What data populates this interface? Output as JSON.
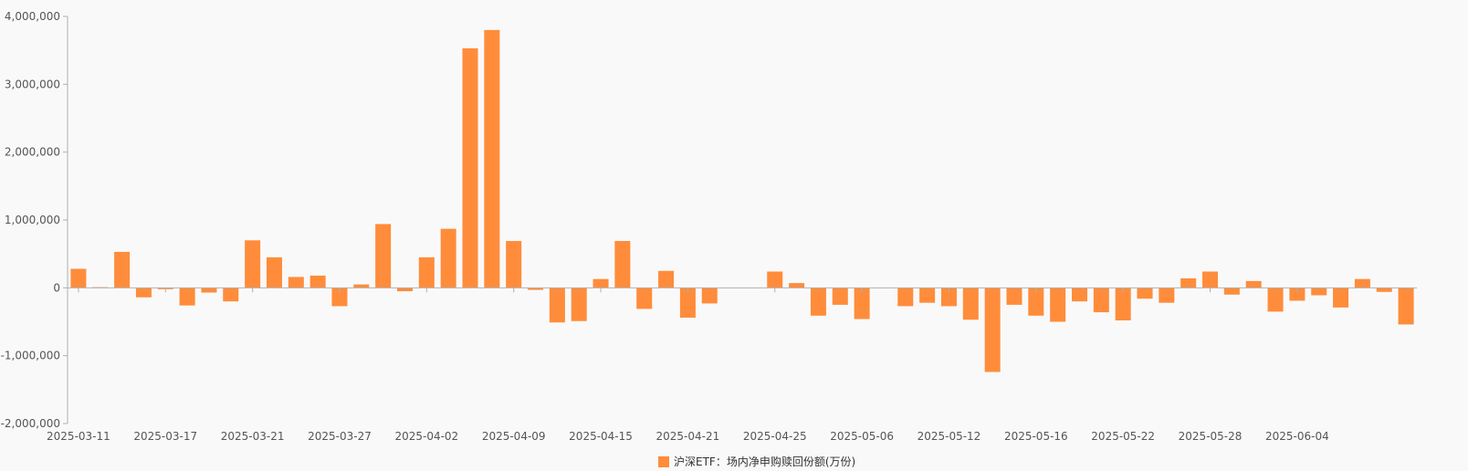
{
  "chart_data": {
    "type": "bar",
    "series": [
      {
        "name": "沪深ETF：场内净申购赎回份额(万份)",
        "color": "#ff8c3a",
        "values": [
          280000,
          10000,
          530000,
          -140000,
          -20000,
          -260000,
          -70000,
          -200000,
          700000,
          450000,
          160000,
          180000,
          -270000,
          50000,
          940000,
          -50000,
          450000,
          870000,
          3530000,
          3800000,
          690000,
          -30000,
          -510000,
          -490000,
          130000,
          690000,
          -310000,
          250000,
          -440000,
          -230000,
          0,
          0,
          240000,
          70000,
          -410000,
          -250000,
          -460000,
          0,
          -270000,
          -220000,
          -270000,
          -470000,
          -1240000,
          -250000,
          -410000,
          -500000,
          -200000,
          -360000,
          -480000,
          -160000,
          -220000,
          140000,
          240000,
          -100000,
          100000,
          -350000,
          -190000,
          -110000,
          -290000,
          130000,
          -60000,
          -540000
        ]
      }
    ],
    "x_tick_labels": [
      "2025-03-11",
      "2025-03-17",
      "2025-03-21",
      "2025-03-27",
      "2025-04-02",
      "2025-04-09",
      "2025-04-15",
      "2025-04-21",
      "2025-04-25",
      "2025-05-06",
      "2025-05-12",
      "2025-05-16",
      "2025-05-22",
      "2025-05-28",
      "2025-06-04"
    ],
    "y_tick_labels": [
      "4,000,000",
      "3,000,000",
      "2,000,000",
      "1,000,000",
      "0",
      "-1,000,000",
      "-2,000,000"
    ],
    "ylim": [
      -2000000,
      4000000
    ],
    "y_ticks": [
      4000000,
      3000000,
      2000000,
      1000000,
      0,
      -1000000,
      -2000000
    ],
    "legend_position": "bottom-center",
    "grid": false
  }
}
